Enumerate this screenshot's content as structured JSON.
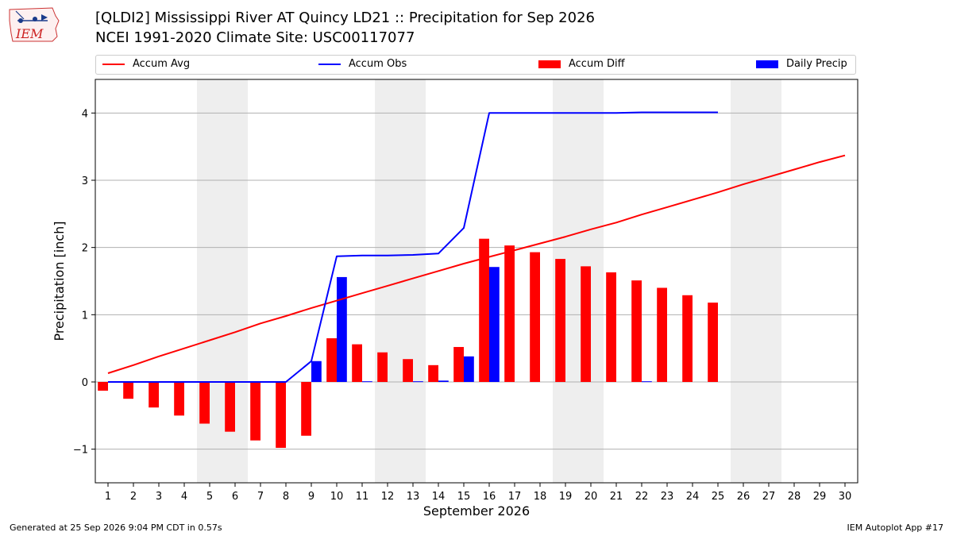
{
  "header": {
    "title_line1": "[QLDI2] Mississippi River  AT Quincy LD21 :: Precipitation for Sep 2026",
    "title_line2": "NCEI 1991-2020 Climate Site: USC00117077",
    "logo_text": "IEM"
  },
  "footer": {
    "generated": "Generated at 25 Sep 2026 9:04 PM CDT in 0.57s",
    "app": "IEM Autoplot App #17"
  },
  "colors": {
    "accum_avg": "#ff0000",
    "accum_obs": "#0000ff",
    "accum_diff": "#ff0000",
    "daily_precip": "#0000ff",
    "weekend_shade": "#eeeeee",
    "grid": "#b0b0b0"
  },
  "chart_data": {
    "type": "bar",
    "xlabel": "September 2026",
    "ylabel": "Precipitation [inch]",
    "xlim": [
      0.5,
      30.5
    ],
    "ylim": [
      -1.5,
      4.5
    ],
    "yticks": [
      -1,
      0,
      1,
      2,
      3,
      4
    ],
    "ytick_labels": [
      "−1",
      "0",
      "1",
      "2",
      "3",
      "4"
    ],
    "grid": "horizontal",
    "legend_placement": "top",
    "days": [
      1,
      2,
      3,
      4,
      5,
      6,
      7,
      8,
      9,
      10,
      11,
      12,
      13,
      14,
      15,
      16,
      17,
      18,
      19,
      20,
      21,
      22,
      23,
      24,
      25,
      26,
      27,
      28,
      29,
      30
    ],
    "weekend_ranges": [
      [
        4.5,
        6.5
      ],
      [
        11.5,
        13.5
      ],
      [
        18.5,
        20.5
      ],
      [
        25.5,
        27.5
      ]
    ],
    "series": [
      {
        "name": "Accum Avg",
        "kind": "line",
        "x": [
          1,
          2,
          3,
          4,
          5,
          6,
          7,
          8,
          9,
          10,
          11,
          12,
          13,
          14,
          15,
          16,
          17,
          18,
          19,
          20,
          21,
          22,
          23,
          24,
          25,
          26,
          27,
          28,
          29,
          30
        ],
        "values": [
          0.13,
          0.25,
          0.38,
          0.5,
          0.62,
          0.74,
          0.87,
          0.98,
          1.1,
          1.21,
          1.32,
          1.43,
          1.54,
          1.65,
          1.76,
          1.86,
          1.96,
          2.06,
          2.16,
          2.27,
          2.37,
          2.49,
          2.6,
          2.71,
          2.82,
          2.94,
          3.05,
          3.16,
          3.27,
          3.37
        ]
      },
      {
        "name": "Accum Obs",
        "kind": "line",
        "x": [
          1,
          2,
          3,
          4,
          5,
          6,
          7,
          8,
          9,
          10,
          11,
          12,
          13,
          14,
          15,
          16,
          17,
          18,
          19,
          20,
          21,
          22,
          23,
          24,
          25
        ],
        "values": [
          0,
          0,
          0,
          0,
          0,
          0,
          0,
          0,
          0.31,
          1.87,
          1.88,
          1.88,
          1.89,
          1.91,
          2.29,
          4.0,
          4.0,
          4.0,
          4.0,
          4.0,
          4.0,
          4.01,
          4.01,
          4.01,
          4.01
        ]
      },
      {
        "name": "Accum Diff",
        "kind": "bar",
        "x": [
          1,
          2,
          3,
          4,
          5,
          6,
          7,
          8,
          9,
          10,
          11,
          12,
          13,
          14,
          15,
          16,
          17,
          18,
          19,
          20,
          21,
          22,
          23,
          24,
          25
        ],
        "values": [
          -0.13,
          -0.25,
          -0.38,
          -0.5,
          -0.62,
          -0.74,
          -0.87,
          -0.98,
          -0.8,
          0.65,
          0.56,
          0.44,
          0.34,
          0.25,
          0.52,
          2.13,
          2.03,
          1.93,
          1.83,
          1.72,
          1.63,
          1.51,
          1.4,
          1.29,
          1.18
        ]
      },
      {
        "name": "Daily Precip",
        "kind": "bar",
        "x": [
          1,
          2,
          3,
          4,
          5,
          6,
          7,
          8,
          9,
          10,
          11,
          12,
          13,
          14,
          15,
          16,
          17,
          18,
          19,
          20,
          21,
          22,
          23,
          24,
          25
        ],
        "values": [
          0,
          0,
          0,
          0,
          0,
          0,
          0,
          0,
          0.31,
          1.56,
          0.01,
          0,
          0.01,
          0.02,
          0.38,
          1.71,
          0,
          0,
          0,
          0,
          0,
          0.01,
          0,
          0,
          0
        ]
      }
    ]
  }
}
